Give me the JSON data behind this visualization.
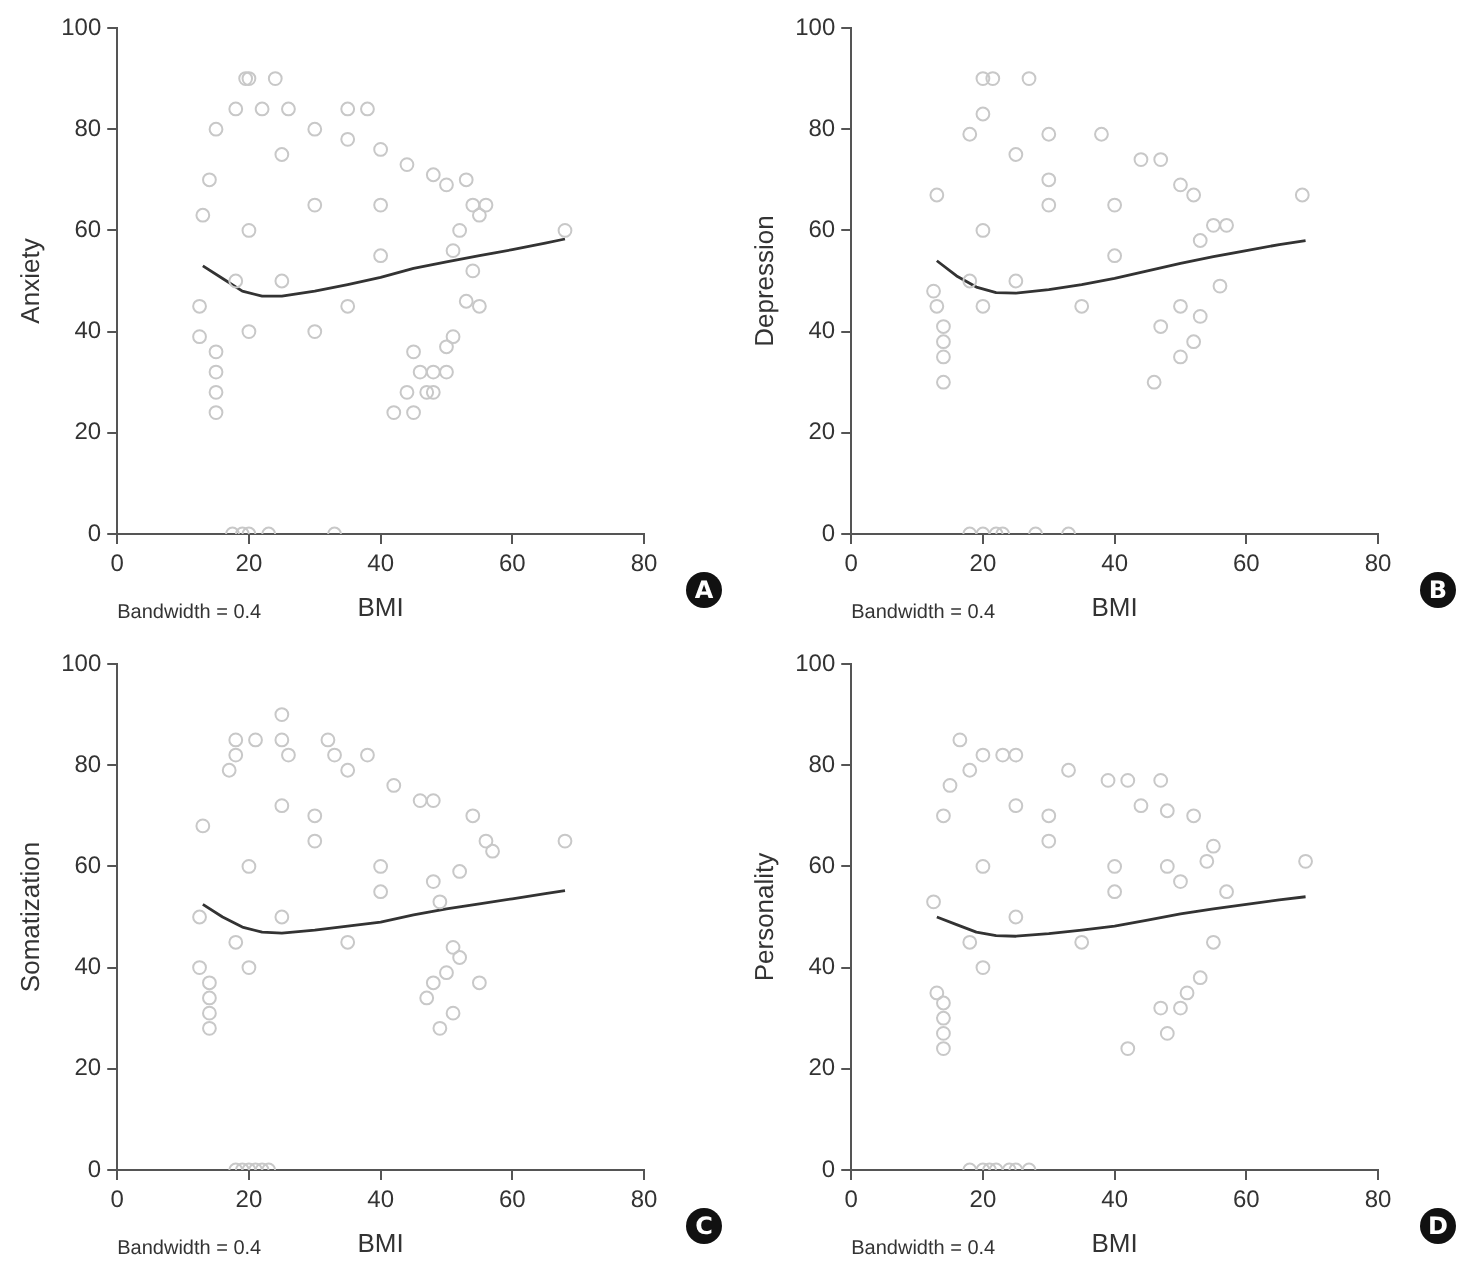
{
  "chart_data": [
    {
      "type": "scatter",
      "xlabel": "BMI",
      "ylabel": "Anxiety",
      "xlim": [
        0,
        80
      ],
      "xticks": [
        0,
        20,
        40,
        60,
        80
      ],
      "ylim": [
        0,
        100
      ],
      "yticks": [
        0,
        20,
        40,
        60,
        80,
        100
      ],
      "legend": false,
      "annotations": [
        "Bandwidth = 0.4",
        "A"
      ],
      "series": [
        {
          "type": "scatter",
          "marker": "circle",
          "color": "#c8c8c8",
          "x": [
            20,
            19.5,
            24,
            18,
            22,
            26,
            35,
            38,
            14,
            13,
            12.5,
            12.5,
            15,
            30,
            35,
            40,
            44,
            48,
            50,
            53,
            54,
            56,
            55,
            52,
            51,
            54,
            55,
            53,
            51,
            50,
            48,
            50,
            47,
            48,
            45,
            15,
            42,
            15,
            44,
            15,
            46,
            15,
            45,
            68,
            17.5,
            19,
            20,
            23,
            33,
            20,
            25,
            30,
            35,
            40,
            20,
            30,
            25,
            40,
            18
          ],
          "values": [
            90,
            90,
            90,
            84,
            84,
            84,
            84,
            84,
            70,
            63,
            45,
            39,
            80,
            80,
            78,
            76,
            73,
            71,
            69,
            70,
            65,
            65,
            63,
            60,
            56,
            52,
            45,
            46,
            39,
            37,
            32,
            32,
            28,
            28,
            24,
            24,
            24,
            28,
            28,
            32,
            32,
            36,
            36,
            60,
            0,
            0,
            0,
            0,
            0,
            60,
            50,
            65,
            45,
            55,
            40,
            40,
            75,
            65,
            50
          ]
        },
        {
          "type": "line",
          "marker": "none",
          "color": "#333333",
          "x": [
            13,
            16,
            19,
            22,
            25,
            30,
            35,
            40,
            45,
            50,
            55,
            60,
            65,
            68
          ],
          "values": [
            53,
            50.5,
            48,
            47,
            47,
            48,
            49.3,
            50.7,
            52.5,
            53.8,
            55,
            56.2,
            57.5,
            58.3
          ]
        }
      ]
    },
    {
      "type": "scatter",
      "xlabel": "BMI",
      "ylabel": "Depression",
      "xlim": [
        0,
        80
      ],
      "xticks": [
        0,
        20,
        40,
        60,
        80
      ],
      "ylim": [
        0,
        100
      ],
      "yticks": [
        0,
        20,
        40,
        60,
        80,
        100
      ],
      "legend": false,
      "annotations": [
        "Bandwidth = 0.4",
        "B"
      ],
      "series": [
        {
          "type": "scatter",
          "marker": "circle",
          "color": "#c8c8c8",
          "x": [
            20,
            21.5,
            27,
            20,
            18,
            30,
            38,
            44,
            47,
            50,
            52,
            55,
            57,
            53,
            56,
            53,
            50,
            13,
            12.5,
            13,
            14,
            47,
            14,
            52,
            14,
            50,
            14,
            46,
            68.5,
            18,
            20,
            22,
            23,
            28,
            33,
            20,
            25,
            30,
            35,
            40,
            20,
            30,
            25,
            40,
            18
          ],
          "values": [
            90,
            90,
            90,
            83,
            79,
            79,
            79,
            74,
            74,
            69,
            67,
            61,
            61,
            58,
            49,
            43,
            45,
            67,
            48,
            45,
            41,
            41,
            38,
            38,
            35,
            35,
            30,
            30,
            67,
            0,
            0,
            0,
            0,
            0,
            0,
            60,
            50,
            65,
            45,
            55,
            45,
            70,
            75,
            65,
            50
          ]
        },
        {
          "type": "line",
          "marker": "none",
          "color": "#333333",
          "x": [
            13,
            16,
            19,
            22,
            25,
            30,
            35,
            40,
            45,
            50,
            55,
            60,
            65,
            69
          ],
          "values": [
            54,
            51,
            48.8,
            47.7,
            47.6,
            48.3,
            49.3,
            50.5,
            52,
            53.5,
            54.8,
            56,
            57.2,
            58
          ]
        }
      ]
    },
    {
      "type": "scatter",
      "xlabel": "BMI",
      "ylabel": "Somatization",
      "xlim": [
        0,
        80
      ],
      "xticks": [
        0,
        20,
        40,
        60,
        80
      ],
      "ylim": [
        0,
        100
      ],
      "yticks": [
        0,
        20,
        40,
        60,
        80,
        100
      ],
      "legend": false,
      "annotations": [
        "Bandwidth = 0.4",
        "C"
      ],
      "series": [
        {
          "type": "scatter",
          "marker": "circle",
          "color": "#c8c8c8",
          "x": [
            25,
            18,
            21,
            25,
            32,
            18,
            26,
            33,
            38,
            17,
            35,
            42,
            46,
            48,
            54,
            56,
            57,
            52,
            48,
            49,
            51,
            52,
            55,
            50,
            13,
            12.5,
            12.5,
            14,
            48,
            14,
            47,
            14,
            51,
            14,
            49,
            68,
            18,
            19,
            20,
            21,
            22,
            23,
            20,
            25,
            30,
            35,
            40,
            20,
            30,
            25,
            40,
            18
          ],
          "values": [
            90,
            85,
            85,
            85,
            85,
            82,
            82,
            82,
            82,
            79,
            79,
            76,
            73,
            73,
            70,
            65,
            63,
            59,
            57,
            53,
            44,
            42,
            37,
            39,
            68,
            50,
            40,
            37,
            37,
            34,
            34,
            31,
            31,
            28,
            28,
            65,
            0,
            0,
            0,
            0,
            0,
            0,
            60,
            50,
            65,
            45,
            55,
            40,
            70,
            72,
            60,
            45
          ]
        },
        {
          "type": "line",
          "marker": "none",
          "color": "#333333",
          "x": [
            13,
            16,
            19,
            22,
            25,
            30,
            35,
            40,
            45,
            50,
            55,
            60,
            65,
            68
          ],
          "values": [
            52.5,
            50,
            48,
            47,
            46.8,
            47.4,
            48.2,
            49,
            50.4,
            51.6,
            52.6,
            53.6,
            54.6,
            55.2
          ]
        }
      ]
    },
    {
      "type": "scatter",
      "xlabel": "BMI",
      "ylabel": "Personality",
      "xlim": [
        0,
        80
      ],
      "xticks": [
        0,
        20,
        40,
        60,
        80
      ],
      "ylim": [
        0,
        100
      ],
      "yticks": [
        0,
        20,
        40,
        60,
        80,
        100
      ],
      "legend": false,
      "annotations": [
        "Bandwidth = 0.4",
        "D"
      ],
      "series": [
        {
          "type": "scatter",
          "marker": "circle",
          "color": "#c8c8c8",
          "x": [
            16.5,
            20,
            23,
            25,
            18,
            33,
            39,
            42,
            47,
            44,
            48,
            52,
            55,
            54,
            48,
            50,
            57,
            55,
            53,
            51,
            47,
            50,
            48,
            42,
            14,
            14,
            14,
            14,
            13,
            12.5,
            14,
            15,
            69,
            18,
            20,
            21,
            22,
            24,
            25,
            27,
            20,
            25,
            30,
            35,
            40,
            20,
            30,
            25,
            40,
            18
          ],
          "values": [
            85,
            82,
            82,
            82,
            79,
            79,
            77,
            77,
            77,
            72,
            71,
            70,
            64,
            61,
            60,
            57,
            55,
            45,
            38,
            35,
            32,
            32,
            27,
            24,
            24,
            27,
            30,
            33,
            35,
            53,
            70,
            76,
            61,
            0,
            0,
            0,
            0,
            0,
            0,
            0,
            60,
            50,
            65,
            45,
            55,
            40,
            70,
            72,
            60,
            45
          ]
        },
        {
          "type": "line",
          "marker": "none",
          "color": "#333333",
          "x": [
            13,
            16,
            19,
            22,
            25,
            30,
            35,
            40,
            45,
            50,
            55,
            60,
            65,
            69
          ],
          "values": [
            50,
            48.5,
            47,
            46.3,
            46.2,
            46.7,
            47.4,
            48.2,
            49.4,
            50.6,
            51.6,
            52.5,
            53.4,
            54
          ]
        }
      ]
    }
  ]
}
